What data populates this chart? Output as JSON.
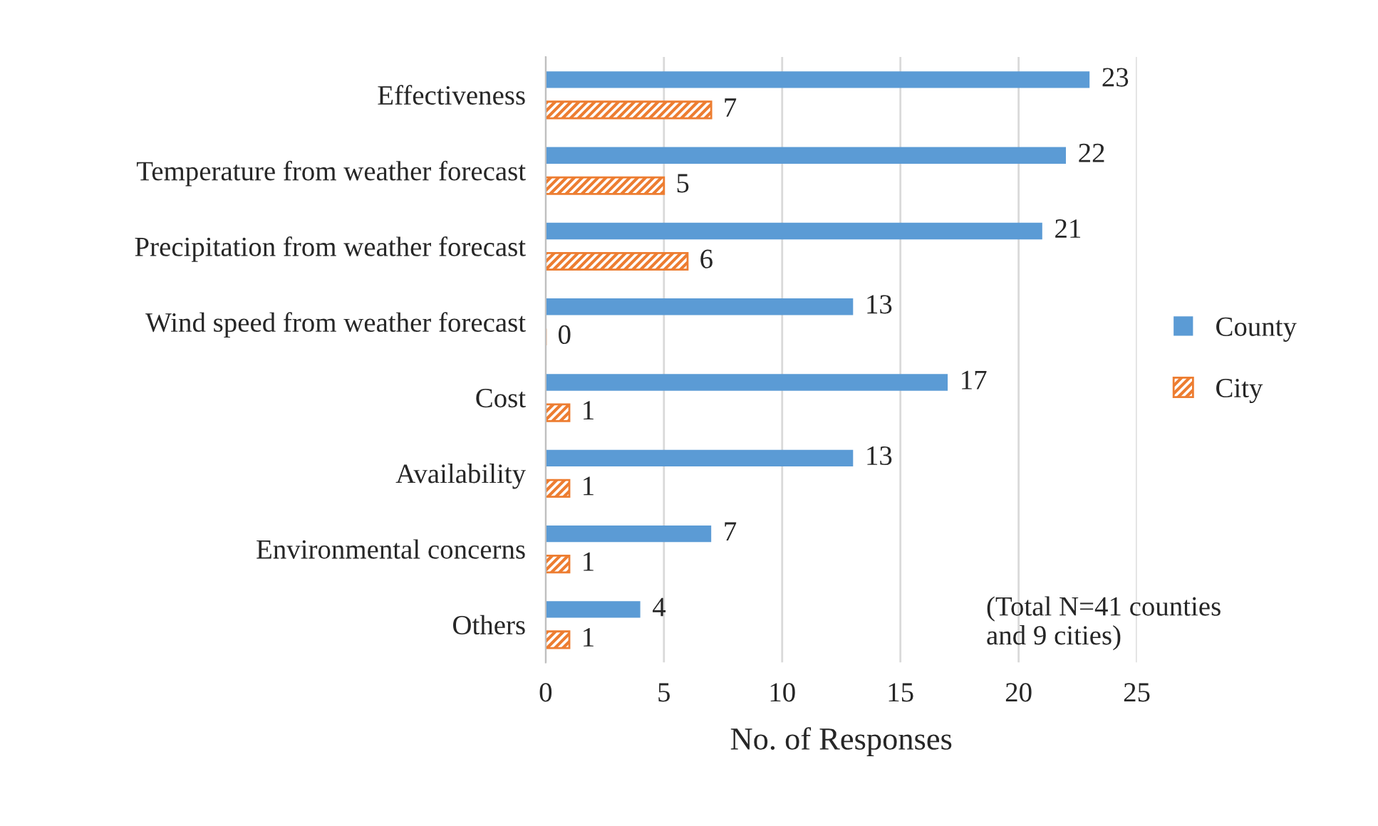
{
  "chart_data": {
    "type": "bar",
    "orientation": "horizontal",
    "xlabel": "No. of Responses",
    "categories": [
      "Effectiveness",
      "Temperature from weather forecast",
      "Precipitation from weather forecast",
      "Wind speed from weather forecast",
      "Cost",
      "Availability",
      "Environmental concerns",
      "Others"
    ],
    "series": [
      {
        "name": "County",
        "color": "#5b9bd5",
        "values": [
          23,
          22,
          21,
          13,
          17,
          13,
          7,
          4
        ]
      },
      {
        "name": "City",
        "color": "#ed7d31",
        "values": [
          7,
          5,
          6,
          0,
          1,
          1,
          1,
          1
        ]
      }
    ],
    "xlim": [
      0,
      25
    ],
    "xticks": [
      0,
      5,
      10,
      15,
      20,
      25
    ],
    "grid": "x",
    "legend": "right",
    "data_labels": true,
    "annotations": [
      "(Total N=41 counties\nand 9 cities)"
    ]
  }
}
